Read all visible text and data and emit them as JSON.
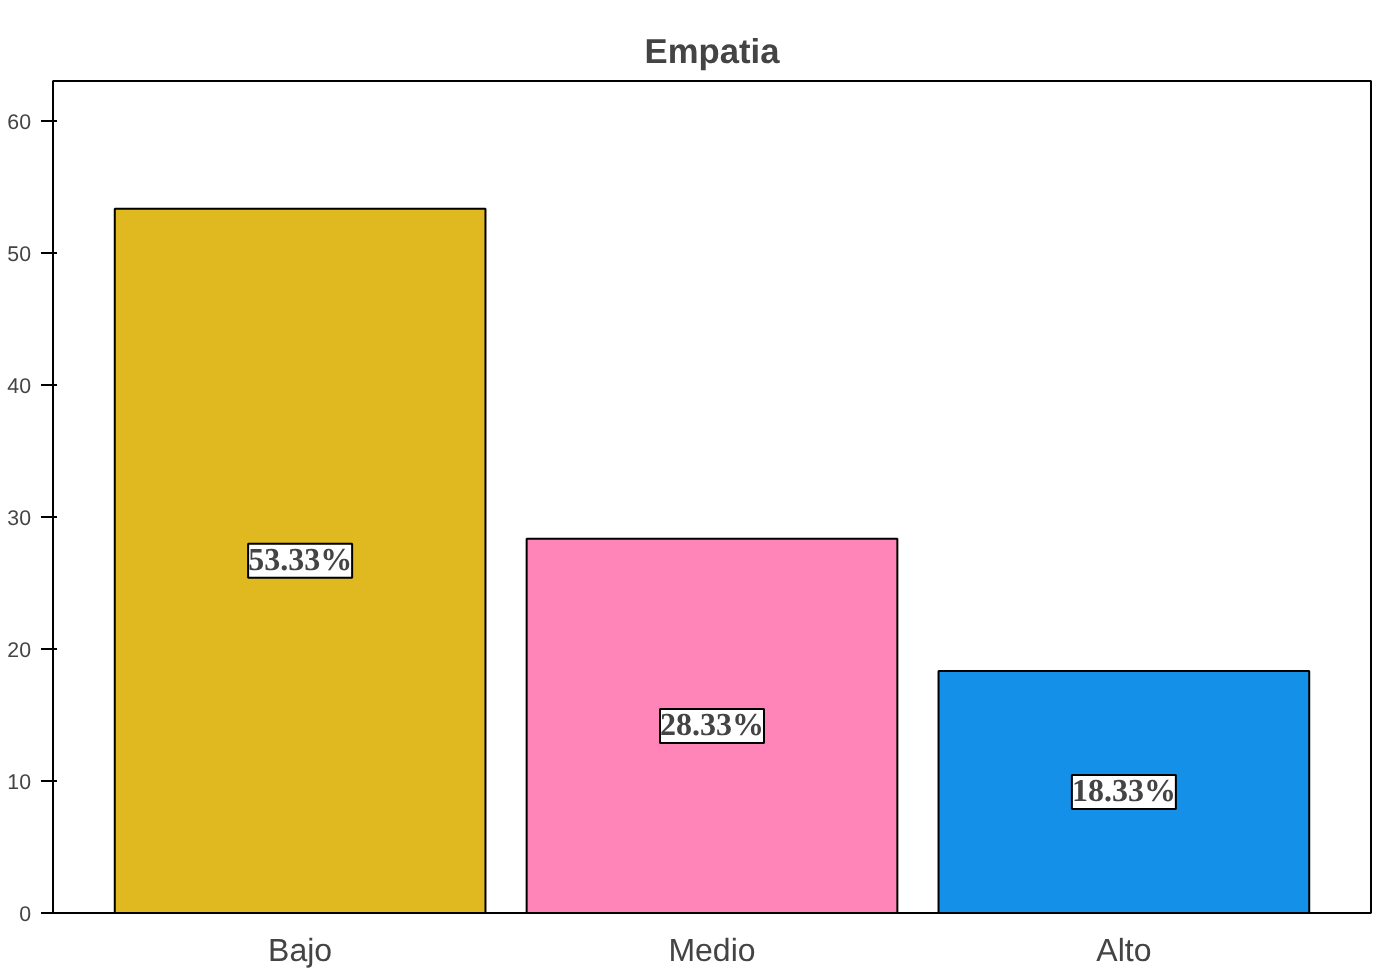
{
  "chart_data": {
    "type": "bar",
    "title": "Empatia",
    "categories": [
      "Bajo",
      "Medio",
      "Alto"
    ],
    "values": [
      53.33,
      28.33,
      18.33
    ],
    "colors": [
      "#e0b820",
      "#ff85b8",
      "#1590e8"
    ],
    "value_labels": [
      "53.33%",
      "28.33%",
      "18.33%"
    ],
    "ylim": [
      0,
      63
    ],
    "yticks": [
      0,
      10,
      20,
      30,
      40,
      50,
      60
    ],
    "grid": false
  }
}
